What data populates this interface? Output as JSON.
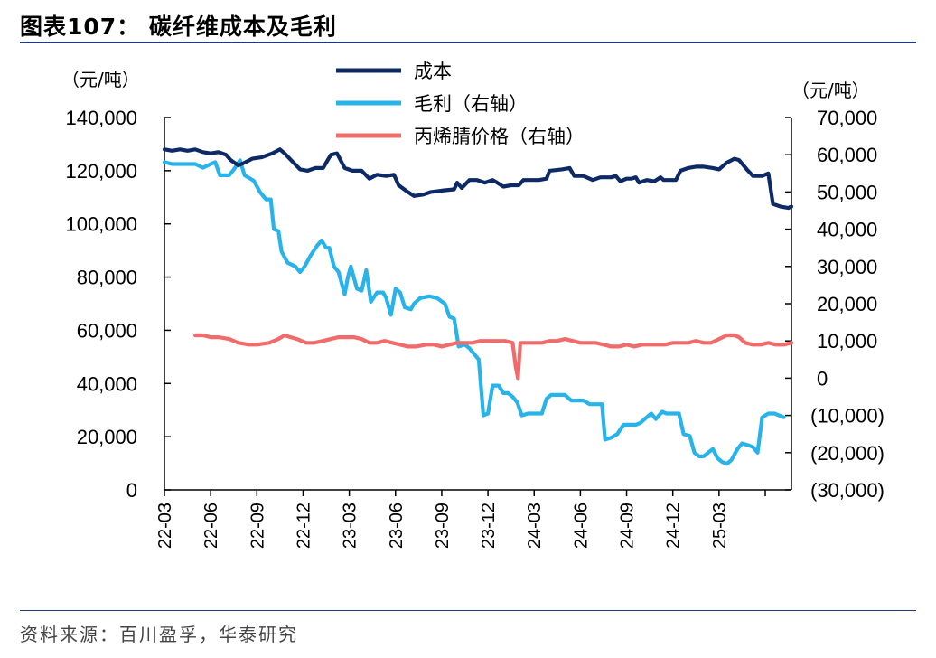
{
  "header": {
    "title": "图表107：  碳纤维成本及毛利"
  },
  "footer": {
    "source": "资料来源：百川盈孚，华泰研究"
  },
  "chart_data": {
    "type": "line",
    "left_axis": {
      "unit": "（元/吨）",
      "ylim": [
        0,
        140000
      ],
      "ticks": [
        0,
        20000,
        40000,
        60000,
        80000,
        100000,
        120000,
        140000
      ],
      "tick_labels": [
        "0",
        "20,000",
        "40,000",
        "60,000",
        "80,000",
        "100,000",
        "120,000",
        "140,000"
      ]
    },
    "right_axis": {
      "unit": "（元/吨）",
      "ylim": [
        -30000,
        70000
      ],
      "ticks": [
        -30000,
        -20000,
        -10000,
        0,
        10000,
        20000,
        30000,
        40000,
        50000,
        60000,
        70000
      ],
      "tick_labels": [
        "(30,000)",
        "(20,000)",
        "(10,000)",
        "0",
        "10,000",
        "20,000",
        "30,000",
        "40,000",
        "50,000",
        "60,000",
        "70,000"
      ]
    },
    "x_axis": {
      "start": 0,
      "end": 40.7,
      "ticks": [
        0,
        3,
        6,
        9,
        12,
        15,
        18,
        21,
        24,
        27,
        30,
        33,
        36,
        39
      ],
      "tick_labels": [
        "22-03",
        "22-06",
        "22-09",
        "22-12",
        "23-03",
        "23-06",
        "23-09",
        "23-12",
        "24-03",
        "24-06",
        "24-09",
        "24-12",
        "25-03",
        ""
      ]
    },
    "legend": {
      "position": "top-center"
    },
    "series": [
      {
        "name": "成本",
        "axis": "left",
        "color": "#0d2a66",
        "points": [
          [
            0,
            128000
          ],
          [
            0.5,
            127500
          ],
          [
            1,
            128000
          ],
          [
            1.5,
            127500
          ],
          [
            2,
            128000
          ],
          [
            2.5,
            127000
          ],
          [
            3,
            126500
          ],
          [
            3.5,
            127000
          ],
          [
            4,
            126000
          ],
          [
            4.3,
            124000
          ],
          [
            4.8,
            122000
          ],
          [
            5.2,
            123000
          ],
          [
            5.7,
            124500
          ],
          [
            6.3,
            125000
          ],
          [
            7,
            126500
          ],
          [
            7.5,
            128000
          ],
          [
            7.8,
            126500
          ],
          [
            8.3,
            123500
          ],
          [
            8.8,
            120500
          ],
          [
            9.3,
            120000
          ],
          [
            9.8,
            121000
          ],
          [
            10.3,
            121000
          ],
          [
            10.8,
            126000
          ],
          [
            11.2,
            126500
          ],
          [
            11.7,
            121000
          ],
          [
            12.2,
            120000
          ],
          [
            12.8,
            120000
          ],
          [
            13.3,
            117000
          ],
          [
            13.8,
            118500
          ],
          [
            14.4,
            118000
          ],
          [
            14.9,
            118500
          ],
          [
            15.2,
            114500
          ],
          [
            15.8,
            112000
          ],
          [
            16.2,
            110500
          ],
          [
            16.8,
            111000
          ],
          [
            17.3,
            112000
          ],
          [
            18,
            112500
          ],
          [
            18.8,
            113000
          ],
          [
            19,
            115500
          ],
          [
            19.3,
            113500
          ],
          [
            19.8,
            116500
          ],
          [
            20.3,
            116500
          ],
          [
            20.8,
            115500
          ],
          [
            21.3,
            116500
          ],
          [
            21.6,
            115500
          ],
          [
            22,
            114000
          ],
          [
            22.5,
            114500
          ],
          [
            23,
            114500
          ],
          [
            23.3,
            116500
          ],
          [
            23.8,
            116500
          ],
          [
            24.3,
            116500
          ],
          [
            24.8,
            117000
          ],
          [
            25,
            120000
          ],
          [
            25.8,
            120500
          ],
          [
            26.3,
            121000
          ],
          [
            26.6,
            118000
          ],
          [
            27.2,
            118000
          ],
          [
            27.8,
            116500
          ],
          [
            28.3,
            117500
          ],
          [
            29,
            117500
          ],
          [
            29.3,
            118000
          ],
          [
            29.6,
            116000
          ],
          [
            30,
            117000
          ],
          [
            30.3,
            117000
          ],
          [
            30.6,
            117500
          ],
          [
            30.8,
            115500
          ],
          [
            31.3,
            116500
          ],
          [
            31.8,
            116000
          ],
          [
            32.2,
            117500
          ],
          [
            32.4,
            116500
          ],
          [
            32.8,
            116500
          ],
          [
            33.2,
            116500
          ],
          [
            33.5,
            120000
          ],
          [
            34,
            121000
          ],
          [
            34.5,
            121500
          ],
          [
            35,
            121500
          ],
          [
            35.6,
            121000
          ],
          [
            36,
            120500
          ],
          [
            36.5,
            123000
          ],
          [
            37,
            124500
          ],
          [
            37.3,
            124000
          ],
          [
            37.8,
            120500
          ],
          [
            38.2,
            118000
          ],
          [
            38.8,
            118000
          ],
          [
            39.2,
            119000
          ],
          [
            39.5,
            107500
          ],
          [
            40,
            106500
          ],
          [
            40.5,
            106000
          ],
          [
            40.7,
            106500
          ]
        ]
      },
      {
        "name": "毛利（右轴）",
        "axis": "right",
        "color": "#28b4ea",
        "points": [
          [
            0,
            58000
          ],
          [
            0.5,
            57500
          ],
          [
            1,
            57500
          ],
          [
            1.5,
            57500
          ],
          [
            2,
            57500
          ],
          [
            2.5,
            56500
          ],
          [
            3,
            57500
          ],
          [
            3.3,
            58000
          ],
          [
            3.6,
            54500
          ],
          [
            4.2,
            54500
          ],
          [
            4.5,
            56000
          ],
          [
            4.9,
            58500
          ],
          [
            5.2,
            54500
          ],
          [
            5.8,
            53000
          ],
          [
            6.2,
            50000
          ],
          [
            6.6,
            48000
          ],
          [
            6.9,
            48000
          ],
          [
            7.1,
            40000
          ],
          [
            7.4,
            39500
          ],
          [
            7.6,
            34000
          ],
          [
            8.0,
            31000
          ],
          [
            8.5,
            30000
          ],
          [
            8.8,
            28500
          ],
          [
            9.1,
            30000
          ],
          [
            9.5,
            33000
          ],
          [
            9.9,
            35500
          ],
          [
            10.2,
            37000
          ],
          [
            10.5,
            35000
          ],
          [
            10.7,
            35000
          ],
          [
            11,
            30000
          ],
          [
            11.3,
            28500
          ],
          [
            11.7,
            22500
          ],
          [
            11.9,
            27000
          ],
          [
            12.1,
            30000
          ],
          [
            12.5,
            24000
          ],
          [
            12.8,
            23500
          ],
          [
            13.1,
            29000
          ],
          [
            13.4,
            20500
          ],
          [
            13.8,
            23000
          ],
          [
            14.2,
            23000
          ],
          [
            14.4,
            21500
          ],
          [
            14.7,
            17000
          ],
          [
            15.0,
            24000
          ],
          [
            15.3,
            23000
          ],
          [
            15.6,
            19000
          ],
          [
            16.0,
            18500
          ],
          [
            16.2,
            20000
          ],
          [
            16.6,
            21500
          ],
          [
            17.2,
            22000
          ],
          [
            17.7,
            21500
          ],
          [
            18.2,
            20000
          ],
          [
            18.5,
            16500
          ],
          [
            18.8,
            16000
          ],
          [
            19.1,
            8500
          ],
          [
            19.5,
            9000
          ],
          [
            19.8,
            8000
          ],
          [
            20.1,
            6500
          ],
          [
            20.4,
            5000
          ],
          [
            20.7,
            -10000
          ],
          [
            21.0,
            -9500
          ],
          [
            21.3,
            -2000
          ],
          [
            21.7,
            -2000
          ],
          [
            22.0,
            -4000
          ],
          [
            22.3,
            -4000
          ],
          [
            22.6,
            -5000
          ],
          [
            22.9,
            -6500
          ],
          [
            23.2,
            -10000
          ],
          [
            23.6,
            -9500
          ],
          [
            24.1,
            -9500
          ],
          [
            24.5,
            -9500
          ],
          [
            24.8,
            -5500
          ],
          [
            25.1,
            -4500
          ],
          [
            25.6,
            -4500
          ],
          [
            26.0,
            -4500
          ],
          [
            26.4,
            -6000
          ],
          [
            26.8,
            -6000
          ],
          [
            27.2,
            -6000
          ],
          [
            27.6,
            -7000
          ],
          [
            28.0,
            -7000
          ],
          [
            28.4,
            -7000
          ],
          [
            28.6,
            -16500
          ],
          [
            29.0,
            -16000
          ],
          [
            29.4,
            -15000
          ],
          [
            29.8,
            -12500
          ],
          [
            30.2,
            -12500
          ],
          [
            30.6,
            -12500
          ],
          [
            30.9,
            -12000
          ],
          [
            31.3,
            -10500
          ],
          [
            31.6,
            -9500
          ],
          [
            31.9,
            -11000
          ],
          [
            32.3,
            -9000
          ],
          [
            32.6,
            -9500
          ],
          [
            33.0,
            -9500
          ],
          [
            33.4,
            -9500
          ],
          [
            33.7,
            -15000
          ],
          [
            34.1,
            -15500
          ],
          [
            34.4,
            -20000
          ],
          [
            34.7,
            -21000
          ],
          [
            35.0,
            -21000
          ],
          [
            35.3,
            -20000
          ],
          [
            35.6,
            -19000
          ],
          [
            35.9,
            -21500
          ],
          [
            36.2,
            -22500
          ],
          [
            36.5,
            -23000
          ],
          [
            36.8,
            -22000
          ],
          [
            37.2,
            -19000
          ],
          [
            37.5,
            -17500
          ],
          [
            37.9,
            -18000
          ],
          [
            38.2,
            -18500
          ],
          [
            38.5,
            -20000
          ],
          [
            38.8,
            -10500
          ],
          [
            39.2,
            -9500
          ],
          [
            39.6,
            -9500
          ],
          [
            39.9,
            -10000
          ],
          [
            40.2,
            -10500
          ]
        ]
      },
      {
        "name": "丙烯腈价格（右轴）",
        "axis": "right",
        "color": "#f26b6b",
        "points": [
          [
            2,
            11500
          ],
          [
            2.5,
            11500
          ],
          [
            3,
            11000
          ],
          [
            3.5,
            11000
          ],
          [
            4.2,
            10500
          ],
          [
            4.8,
            9500
          ],
          [
            5.5,
            9000
          ],
          [
            6,
            9000
          ],
          [
            6.8,
            9500
          ],
          [
            7.4,
            10500
          ],
          [
            7.8,
            11500
          ],
          [
            8.2,
            11000
          ],
          [
            8.6,
            10500
          ],
          [
            9.2,
            9500
          ],
          [
            9.7,
            9500
          ],
          [
            10.3,
            10000
          ],
          [
            10.8,
            10500
          ],
          [
            11.3,
            11000
          ],
          [
            11.8,
            11000
          ],
          [
            12.3,
            11000
          ],
          [
            12.8,
            10500
          ],
          [
            13.3,
            9500
          ],
          [
            13.8,
            9500
          ],
          [
            14.3,
            10000
          ],
          [
            14.8,
            9500
          ],
          [
            15.3,
            9000
          ],
          [
            15.8,
            8500
          ],
          [
            16.3,
            8500
          ],
          [
            17,
            9000
          ],
          [
            17.5,
            9000
          ],
          [
            18,
            8500
          ],
          [
            18.5,
            9000
          ],
          [
            19,
            9500
          ],
          [
            19.5,
            9500
          ],
          [
            20,
            9500
          ],
          [
            20.5,
            10000
          ],
          [
            21,
            10000
          ],
          [
            21.6,
            10000
          ],
          [
            22.1,
            10000
          ],
          [
            22.6,
            9500
          ],
          [
            22.8,
            3000
          ],
          [
            22.95,
            0
          ],
          [
            23.1,
            9500
          ],
          [
            23.5,
            9500
          ],
          [
            24,
            9500
          ],
          [
            24.5,
            9500
          ],
          [
            25,
            10000
          ],
          [
            25.5,
            10000
          ],
          [
            26,
            10500
          ],
          [
            26.5,
            10000
          ],
          [
            27,
            9500
          ],
          [
            27.5,
            9500
          ],
          [
            28,
            9500
          ],
          [
            28.5,
            9000
          ],
          [
            29,
            8500
          ],
          [
            29.5,
            8500
          ],
          [
            30,
            9000
          ],
          [
            30.5,
            8500
          ],
          [
            31,
            9000
          ],
          [
            31.5,
            9000
          ],
          [
            32,
            9000
          ],
          [
            32.5,
            9000
          ],
          [
            33,
            9500
          ],
          [
            33.5,
            9500
          ],
          [
            34,
            9500
          ],
          [
            34.5,
            10000
          ],
          [
            35,
            9500
          ],
          [
            35.5,
            9500
          ],
          [
            36,
            10500
          ],
          [
            36.5,
            11500
          ],
          [
            37,
            11500
          ],
          [
            37.3,
            11000
          ],
          [
            37.7,
            9500
          ],
          [
            38.2,
            9000
          ],
          [
            38.7,
            9000
          ],
          [
            39.2,
            9500
          ],
          [
            39.7,
            9000
          ],
          [
            40.2,
            9000
          ],
          [
            40.7,
            9500
          ]
        ]
      }
    ]
  }
}
